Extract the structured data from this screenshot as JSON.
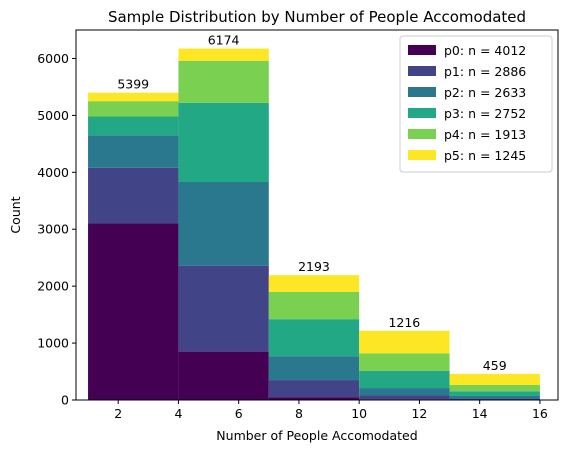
{
  "chart_data": {
    "type": "bar",
    "stacked": true,
    "title": "Sample Distribution by Number of People Accomodated",
    "xlabel": "Number of People Accomodated",
    "ylabel": "Count",
    "xlim": [
      0.6,
      16.6
    ],
    "ylim": [
      0,
      6500
    ],
    "xticks": [
      2,
      4,
      6,
      8,
      10,
      12,
      14,
      16
    ],
    "yticks": [
      0,
      1000,
      2000,
      3000,
      4000,
      5000,
      6000
    ],
    "bins": [
      {
        "start": 1,
        "end": 4
      },
      {
        "start": 4,
        "end": 7
      },
      {
        "start": 7,
        "end": 10
      },
      {
        "start": 10,
        "end": 13
      },
      {
        "start": 13,
        "end": 16
      }
    ],
    "totals": [
      5399,
      6174,
      2193,
      1216,
      459
    ],
    "total_labels": [
      "5399",
      "6174",
      "2193",
      "1216",
      "459"
    ],
    "series": [
      {
        "name": "p0: n = 4012",
        "color": "#440154",
        "values": [
          3100,
          850,
          50,
          10,
          2
        ]
      },
      {
        "name": "p1: n = 2886",
        "color": "#414487",
        "values": [
          980,
          1510,
          300,
          70,
          26
        ]
      },
      {
        "name": "p2: n = 2633",
        "color": "#2a788e",
        "values": [
          570,
          1470,
          420,
          130,
          43
        ]
      },
      {
        "name": "p3: n = 2752",
        "color": "#22a884",
        "values": [
          330,
          1390,
          650,
          300,
          82
        ]
      },
      {
        "name": "p4: n = 1913",
        "color": "#7ad151",
        "values": [
          270,
          740,
          480,
          310,
          113
        ]
      },
      {
        "name": "p5: n = 1245",
        "color": "#fde725",
        "values": [
          149,
          214,
          293,
          396,
          193
        ]
      }
    ],
    "legend_position": "top-right",
    "grid": false
  }
}
